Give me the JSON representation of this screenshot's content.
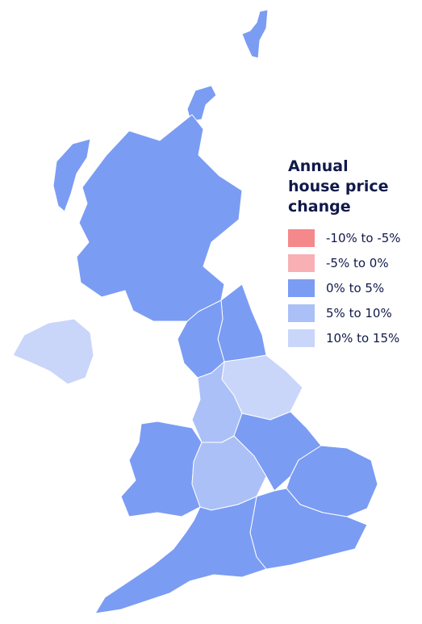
{
  "legend": {
    "title": "Annual house price change",
    "items": [
      {
        "label": "-10% to -5%",
        "color": "#f4888b"
      },
      {
        "label": "-5% to 0%",
        "color": "#f8b0b5"
      },
      {
        "label": "0% to 5%",
        "color": "#7b9cf3"
      },
      {
        "label": "5% to 10%",
        "color": "#abc0f7"
      },
      {
        "label": "10% to 15%",
        "color": "#c9d6f9"
      }
    ]
  }
}
